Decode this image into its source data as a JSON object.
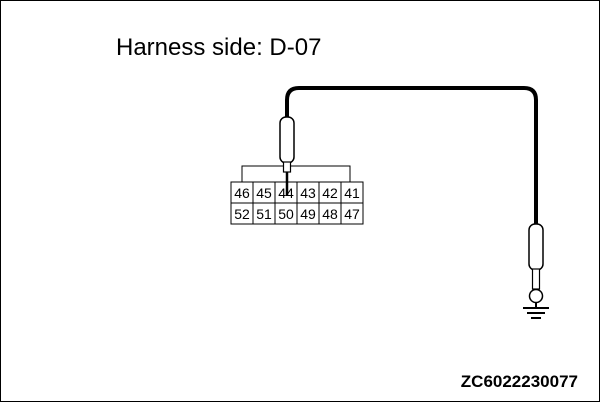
{
  "title": "Harness side: D-07",
  "figure_code": "ZC6022230077",
  "connector": {
    "top_row": [
      "46",
      "45",
      "44",
      "43",
      "42",
      "41"
    ],
    "bottom_row": [
      "52",
      "51",
      "50",
      "49",
      "48",
      "47"
    ],
    "probed_pin": "44"
  }
}
